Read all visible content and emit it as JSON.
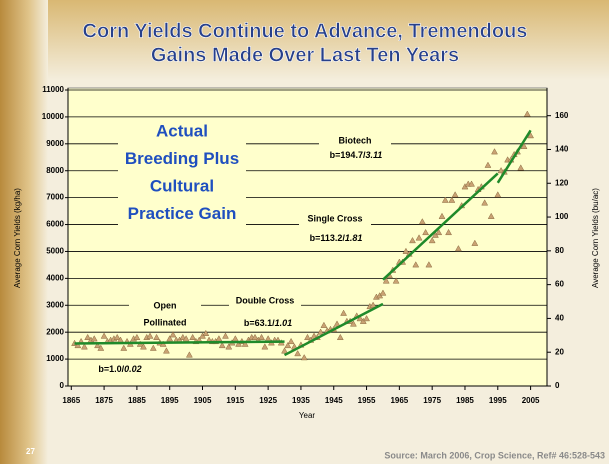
{
  "chart_data": {
    "type": "scatter",
    "title_lines": [
      "Corn Yields Continue to Advance, Tremendous",
      "Gains Made Over Last Ten Years"
    ],
    "x_label": "Year",
    "y_label": "Average Corn Yields (kg/ha)",
    "y2_label": "Average Corn Yields (bu/ac)",
    "xlim": [
      1864,
      2010
    ],
    "xticks": [
      1865,
      1875,
      1885,
      1895,
      1905,
      1915,
      1925,
      1935,
      1945,
      1955,
      1965,
      1975,
      1985,
      1995,
      2005
    ],
    "ylim": [
      0,
      11000
    ],
    "yticks": [
      0,
      1000,
      2000,
      3000,
      4000,
      5000,
      6000,
      7000,
      8000,
      9000,
      10000,
      11000
    ],
    "y2lim": [
      0,
      175.2
    ],
    "y2ticks": [
      0,
      20,
      40,
      60,
      80,
      100,
      120,
      140,
      160
    ],
    "grid": true,
    "points": {
      "color": "#c9a273",
      "x": [
        1866,
        1867,
        1868,
        1869,
        1870,
        1871,
        1872,
        1873,
        1874,
        1875,
        1876,
        1877,
        1878,
        1879,
        1880,
        1881,
        1882,
        1883,
        1884,
        1885,
        1886,
        1887,
        1888,
        1889,
        1890,
        1891,
        1892,
        1893,
        1894,
        1895,
        1896,
        1897,
        1898,
        1899,
        1900,
        1901,
        1902,
        1903,
        1904,
        1905,
        1906,
        1907,
        1908,
        1909,
        1910,
        1911,
        1912,
        1913,
        1914,
        1915,
        1916,
        1917,
        1918,
        1919,
        1920,
        1921,
        1922,
        1923,
        1924,
        1925,
        1926,
        1927,
        1928,
        1929,
        1930,
        1931,
        1932,
        1933,
        1934,
        1935,
        1936,
        1937,
        1938,
        1939,
        1940,
        1941,
        1942,
        1943,
        1944,
        1945,
        1946,
        1947,
        1948,
        1949,
        1950,
        1951,
        1952,
        1953,
        1954,
        1955,
        1956,
        1957,
        1958,
        1959,
        1960,
        1961,
        1962,
        1963,
        1964,
        1965,
        1966,
        1967,
        1968,
        1969,
        1970,
        1971,
        1972,
        1973,
        1974,
        1975,
        1976,
        1977,
        1978,
        1979,
        1980,
        1981,
        1982,
        1983,
        1984,
        1985,
        1986,
        1987,
        1988,
        1989,
        1990,
        1991,
        1992,
        1993,
        1994,
        1995,
        1996,
        1997,
        1998,
        1999,
        2000,
        2001,
        2002,
        2003,
        2004,
        2005
      ],
      "values": [
        1580,
        1500,
        1650,
        1450,
        1800,
        1700,
        1750,
        1500,
        1400,
        1850,
        1650,
        1700,
        1750,
        1800,
        1700,
        1400,
        1650,
        1550,
        1750,
        1800,
        1550,
        1450,
        1800,
        1850,
        1400,
        1800,
        1600,
        1550,
        1300,
        1750,
        1900,
        1700,
        1700,
        1800,
        1750,
        1150,
        1800,
        1650,
        1700,
        1850,
        1950,
        1700,
        1650,
        1650,
        1750,
        1500,
        1850,
        1450,
        1600,
        1750,
        1550,
        1650,
        1550,
        1700,
        1800,
        1800,
        1700,
        1800,
        1450,
        1750,
        1600,
        1700,
        1700,
        1600,
        1300,
        1500,
        1650,
        1450,
        1200,
        1520,
        1050,
        1800,
        1700,
        1850,
        1800,
        2000,
        2250,
        2050,
        2100,
        2100,
        2300,
        1800,
        2700,
        2400,
        2400,
        2300,
        2600,
        2500,
        2400,
        2500,
        2950,
        3000,
        3300,
        3350,
        3450,
        3900,
        4100,
        4300,
        3900,
        4600,
        4600,
        5000,
        4900,
        5400,
        4500,
        5500,
        6100,
        5700,
        4500,
        5400,
        5600,
        5700,
        6300,
        6900,
        5700,
        6900,
        7100,
        5100,
        6700,
        7400,
        7500,
        7500,
        5300,
        7300,
        7400,
        6800,
        8200,
        6300,
        8700,
        7100,
        8000,
        7950,
        8400,
        8400,
        8600,
        8700,
        8100,
        8900,
        10100,
        9300
      ]
    },
    "trend_color": "#1f8a2a",
    "trend_lines": [
      {
        "x": [
          1866,
          1930
        ],
        "values": [
          1580,
          1650
        ]
      },
      {
        "x": [
          1930,
          1960
        ],
        "values": [
          1150,
          3050
        ]
      },
      {
        "x": [
          1960,
          1995
        ],
        "values": [
          3950,
          7900
        ]
      },
      {
        "x": [
          1995,
          2005
        ],
        "values": [
          7550,
          9500
        ]
      }
    ],
    "headline": [
      "Actual",
      "Breeding Plus",
      "Cultural",
      "Practice Gain"
    ],
    "annotations": [
      {
        "title": "Biotech",
        "rate": "b=194.7/",
        "rate_italic": "3.11"
      },
      {
        "title": "Single Cross",
        "rate": "b=113.2/",
        "rate_italic": "1.81"
      },
      {
        "title": "Double Cross",
        "rate": "b=63.1/",
        "rate_italic": "1.01"
      },
      {
        "title": "Open",
        "title2": "Pollinated",
        "rate": "b=1.0/",
        "rate_italic": "0.02"
      }
    ],
    "slide_number": "27",
    "source": "Source: March 2006,  Crop Science, Ref# 46:528-543"
  }
}
